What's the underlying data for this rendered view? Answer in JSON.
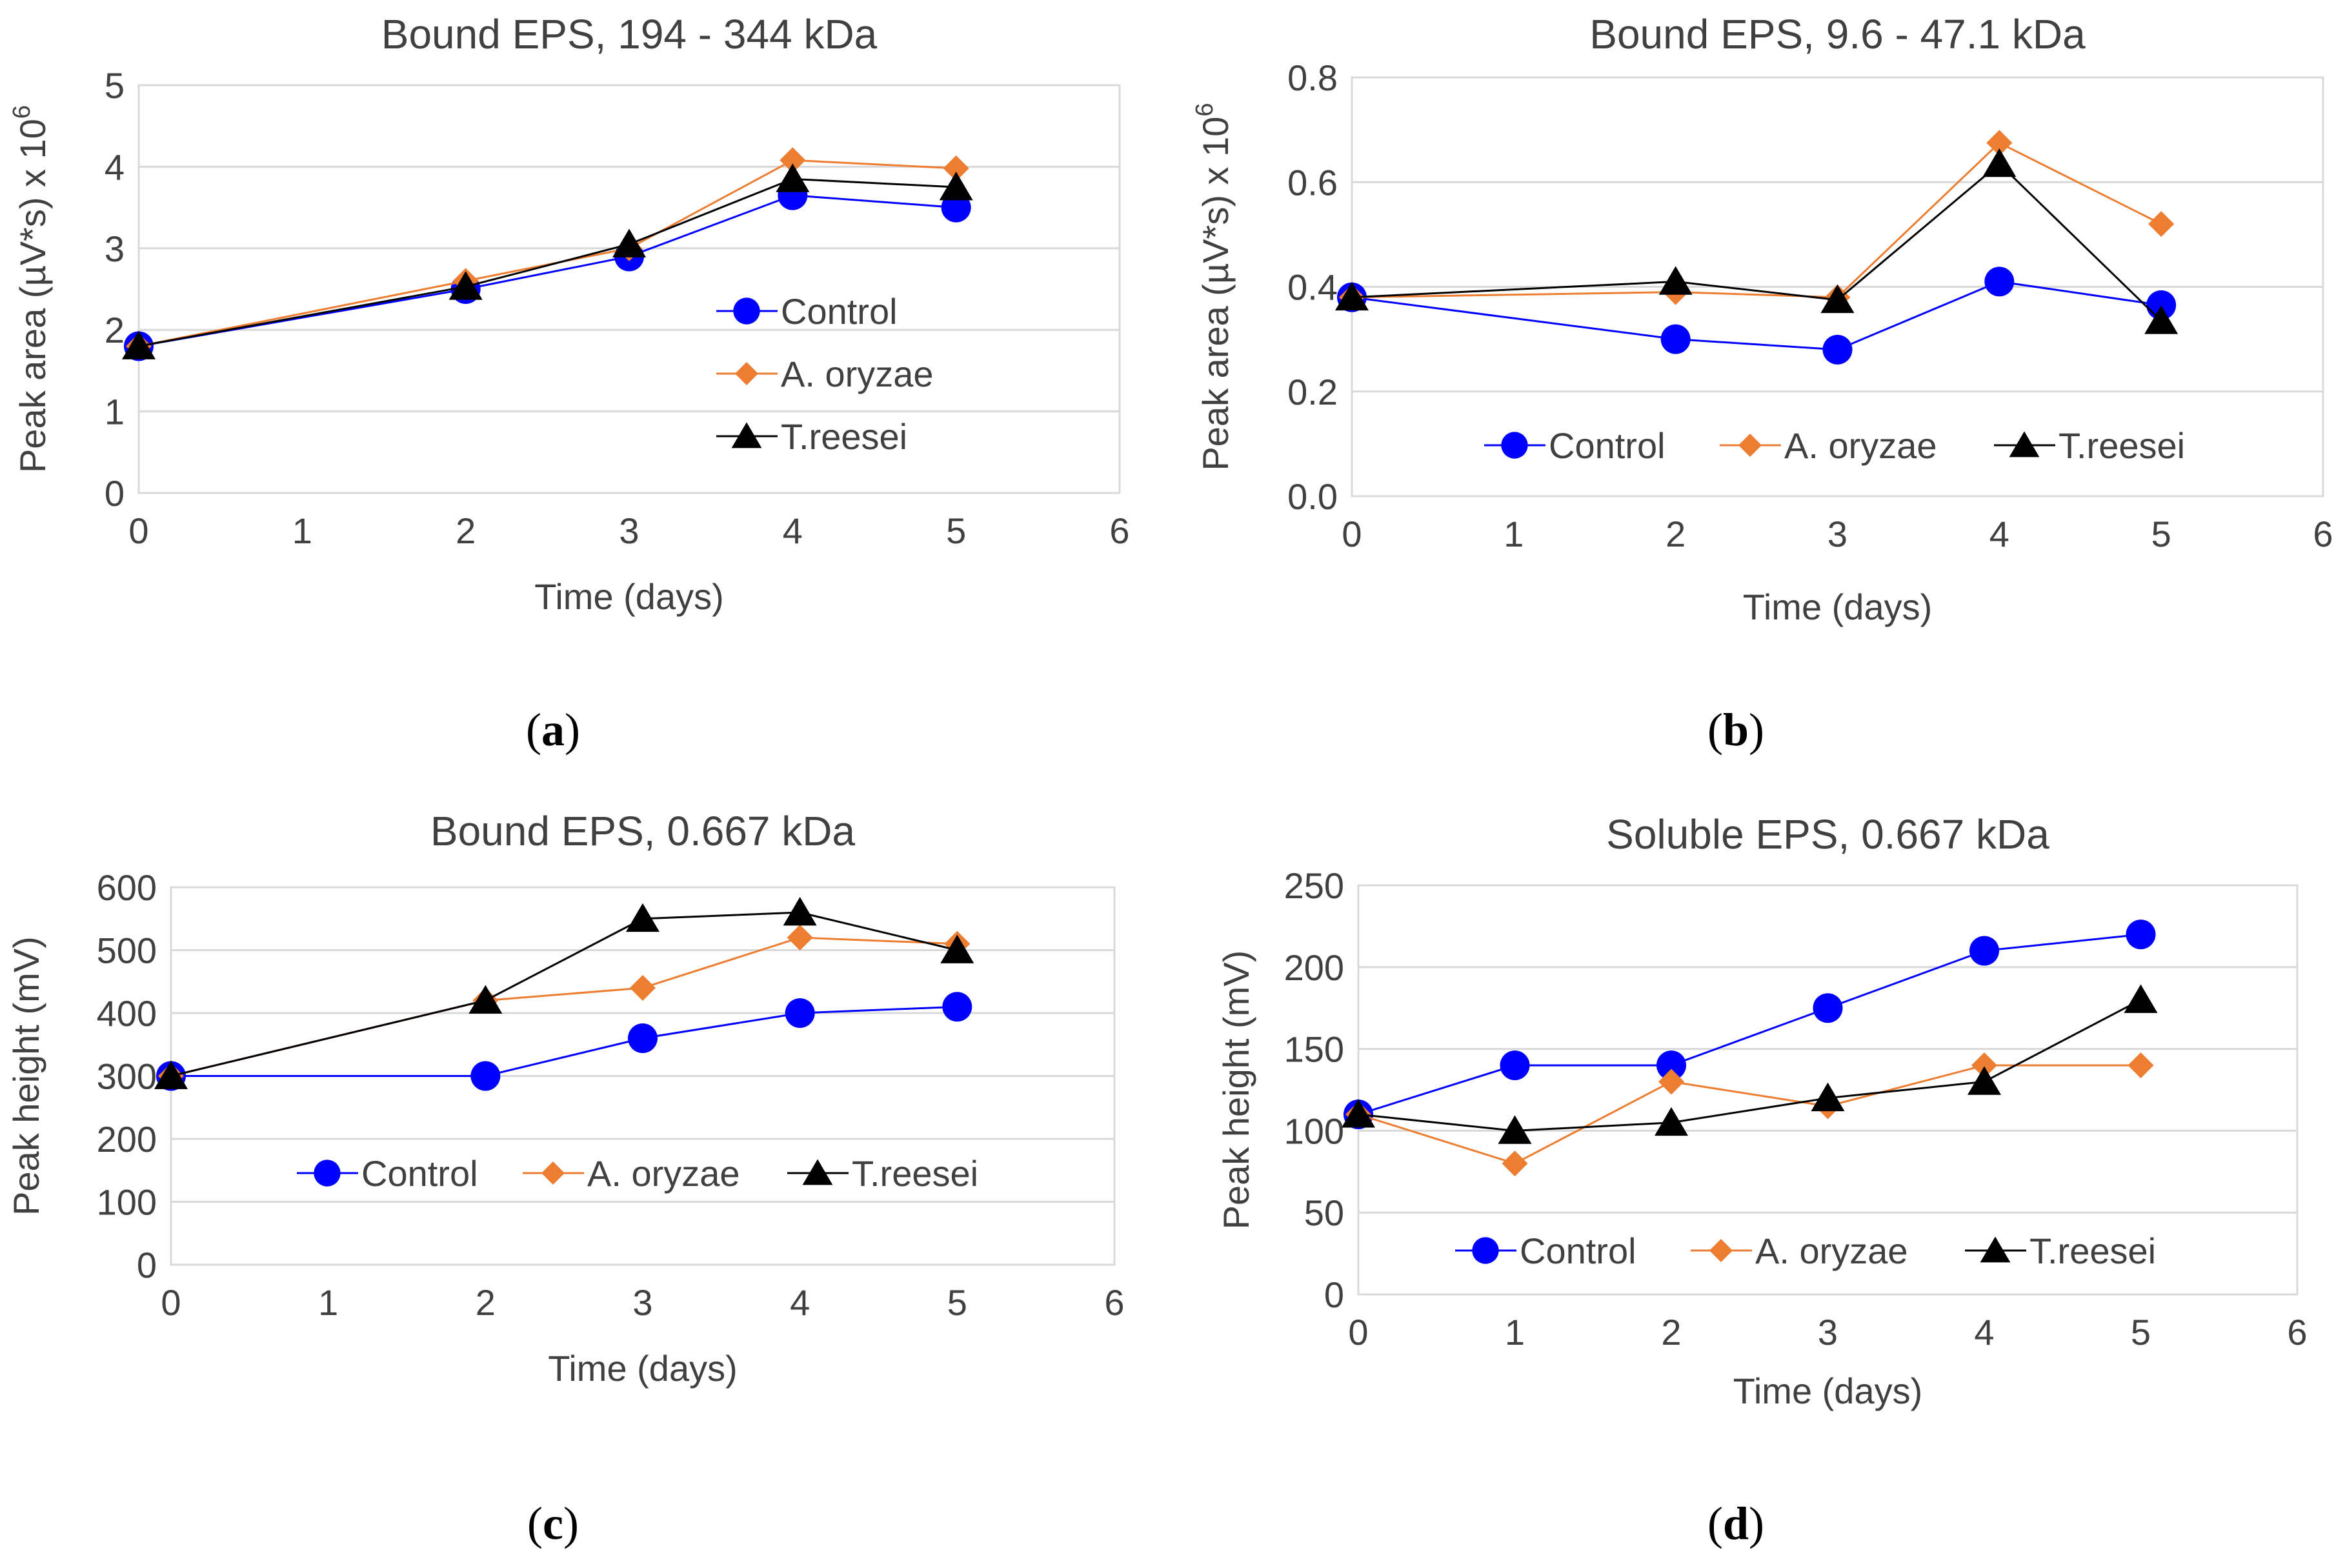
{
  "chart_data": [
    {
      "id": "a",
      "type": "line",
      "title": "Bound EPS, 194 - 344 kDa",
      "xlabel": "Time (days)",
      "ylabel": "Peak area (µV*s) x 10",
      "ylabel_sup": "6",
      "xlim": [
        0,
        6
      ],
      "ylim": [
        0,
        5
      ],
      "xticks": [
        "0",
        "1",
        "2",
        "3",
        "4",
        "5",
        "6"
      ],
      "yticks": [
        "0",
        "1",
        "2",
        "3",
        "4",
        "5"
      ],
      "legend": "right",
      "caption": "(a)",
      "series": [
        {
          "name": "Control",
          "x": [
            0,
            2,
            3,
            4,
            5
          ],
          "values": [
            1.8,
            2.5,
            2.9,
            3.65,
            3.5
          ]
        },
        {
          "name": "A. oryzae",
          "x": [
            0,
            2,
            3,
            4,
            5
          ],
          "values": [
            1.8,
            2.6,
            3.0,
            4.08,
            3.98
          ]
        },
        {
          "name": "T.reesei",
          "x": [
            0,
            2,
            3,
            4,
            5
          ],
          "values": [
            1.8,
            2.53,
            3.05,
            3.85,
            3.75
          ]
        }
      ]
    },
    {
      "id": "b",
      "type": "line",
      "title": "Bound EPS, 9.6 - 47.1 kDa",
      "xlabel": "Time (days)",
      "ylabel": "Peak area (µV*s) x 10",
      "ylabel_sup": "6",
      "xlim": [
        0,
        6
      ],
      "ylim": [
        0,
        0.8
      ],
      "xticks": [
        "0",
        "1",
        "2",
        "3",
        "4",
        "5",
        "6"
      ],
      "yticks": [
        "0.0",
        "0.2",
        "0.4",
        "0.6",
        "0.8"
      ],
      "legend": "bottom",
      "caption": "(b)",
      "series": [
        {
          "name": "Control",
          "x": [
            0,
            2,
            3,
            4,
            5
          ],
          "values": [
            0.38,
            0.3,
            0.28,
            0.41,
            0.365
          ]
        },
        {
          "name": "A. oryzae",
          "x": [
            0,
            2,
            3,
            4,
            5
          ],
          "values": [
            0.38,
            0.39,
            0.38,
            0.675,
            0.52
          ]
        },
        {
          "name": "T.reesei",
          "x": [
            0,
            2,
            3,
            4,
            5
          ],
          "values": [
            0.38,
            0.41,
            0.375,
            0.635,
            0.335
          ]
        }
      ]
    },
    {
      "id": "c",
      "type": "line",
      "title": "Bound EPS, 0.667 kDa",
      "xlabel": "Time (days)",
      "ylabel": "Peak height (mV)",
      "ylabel_sup": "",
      "xlim": [
        0,
        6
      ],
      "ylim": [
        0,
        600
      ],
      "xticks": [
        "0",
        "1",
        "2",
        "3",
        "4",
        "5",
        "6"
      ],
      "yticks": [
        "0",
        "100",
        "200",
        "300",
        "400",
        "500",
        "600"
      ],
      "legend": "bottom",
      "caption": "(c)",
      "series": [
        {
          "name": "Control",
          "x": [
            0,
            2,
            3,
            4,
            5
          ],
          "values": [
            300,
            300,
            360,
            400,
            410
          ]
        },
        {
          "name": "A. oryzae",
          "x": [
            0,
            2,
            3,
            4,
            5
          ],
          "values": [
            300,
            420,
            440,
            520,
            510
          ]
        },
        {
          "name": "T.reesei",
          "x": [
            0,
            2,
            3,
            4,
            5
          ],
          "values": [
            300,
            420,
            550,
            560,
            500
          ]
        }
      ]
    },
    {
      "id": "d",
      "type": "line",
      "title": "Soluble EPS, 0.667 kDa",
      "xlabel": "Time (days)",
      "ylabel": "Peak height (mV)",
      "ylabel_sup": "",
      "xlim": [
        0,
        6
      ],
      "ylim": [
        0,
        250
      ],
      "xticks": [
        "0",
        "1",
        "2",
        "3",
        "4",
        "5",
        "6"
      ],
      "yticks": [
        "0",
        "50",
        "100",
        "150",
        "200",
        "250"
      ],
      "legend": "bottom",
      "caption": "(d)",
      "series": [
        {
          "name": "Control",
          "x": [
            0,
            1,
            2,
            3,
            4,
            5
          ],
          "values": [
            110,
            140,
            140,
            175,
            210,
            220
          ]
        },
        {
          "name": "A. oryzae",
          "x": [
            0,
            1,
            2,
            3,
            4,
            5
          ],
          "values": [
            110,
            80,
            130,
            115,
            140,
            140
          ]
        },
        {
          "name": "T.reesei",
          "x": [
            0,
            1,
            2,
            3,
            4,
            5
          ],
          "values": [
            110,
            100,
            105,
            120,
            130,
            180
          ]
        }
      ]
    }
  ],
  "series_colors": {
    "Control": "#0000FF",
    "A. oryzae": "#ED7D31",
    "T.reesei": "#000000"
  },
  "series_markers": {
    "Control": "circle",
    "A. oryzae": "diamond",
    "T.reesei": "triangle"
  }
}
